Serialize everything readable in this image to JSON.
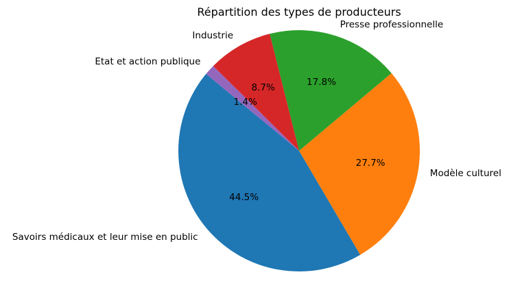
{
  "figure": {
    "background": "#ffffff"
  },
  "chart_data": {
    "type": "pie",
    "title": "Répartition des types de producteurs",
    "xlabel": "",
    "ylabel": "",
    "legend": "none",
    "grid": false,
    "categories": [
      "Savoirs médicaux et leur mise en public",
      "Modèle culturel",
      "Presse professionnelle",
      "Industrie",
      "Etat et action publique"
    ],
    "values": [
      44.5,
      27.7,
      17.8,
      8.7,
      1.4
    ],
    "slices": [
      {
        "label": "Savoirs médicaux et leur mise en public",
        "value": 44.5,
        "pct_label": "44.5%",
        "color": "#1f77b4"
      },
      {
        "label": "Modèle culturel",
        "value": 27.7,
        "pct_label": "27.7%",
        "color": "#ff7f0e"
      },
      {
        "label": "Presse professionnelle",
        "value": 17.8,
        "pct_label": "17.8%",
        "color": "#2ca02c"
      },
      {
        "label": "Industrie",
        "value": 8.7,
        "pct_label": "8.7%",
        "color": "#d62728"
      },
      {
        "label": "Etat et action publique",
        "value": 1.4,
        "pct_label": "1.4%",
        "color": "#9467bd"
      }
    ],
    "layout_hints": {
      "start_angle_deg": 140.4,
      "direction": "counterclockwise",
      "label_distance": 1.1,
      "pct_distance": 0.6,
      "text_color": "#000000"
    }
  }
}
